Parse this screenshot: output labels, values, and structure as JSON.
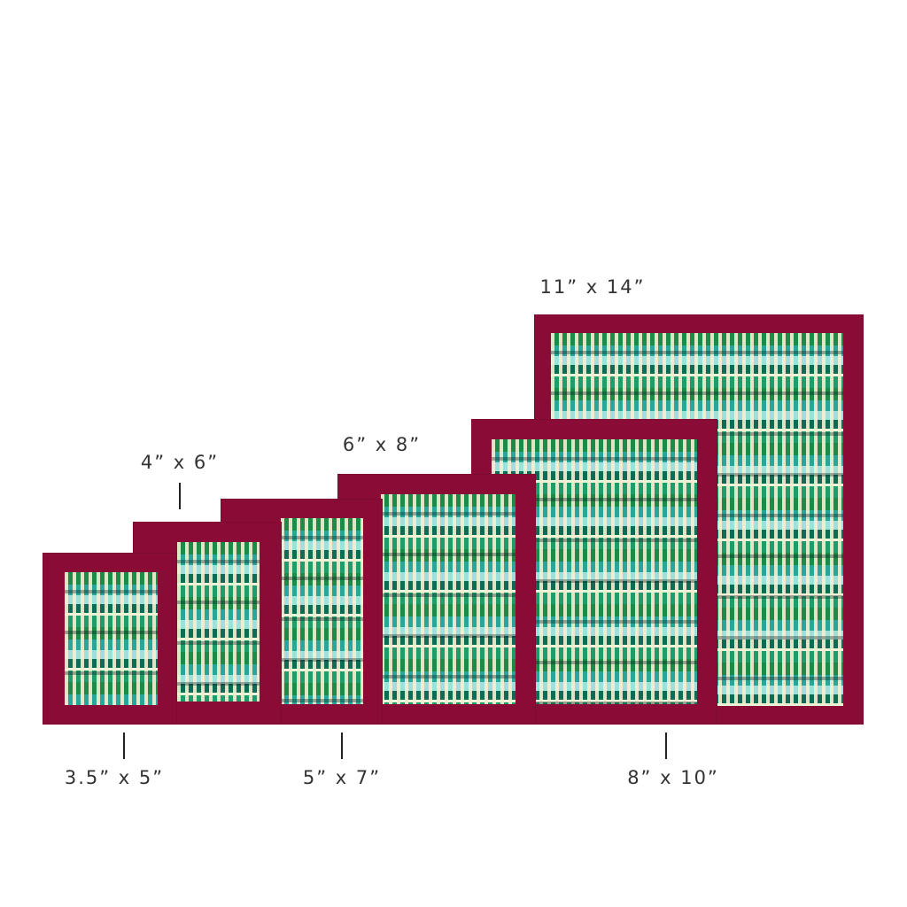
{
  "frame_color": "#8a0b36",
  "frames": [
    {
      "size": "3.5” x 5”"
    },
    {
      "size": "4” x 6”"
    },
    {
      "size": "5” x 7”"
    },
    {
      "size": "6” x 8”"
    },
    {
      "size": "8” x 10”"
    },
    {
      "size": "11” x 14”"
    }
  ]
}
